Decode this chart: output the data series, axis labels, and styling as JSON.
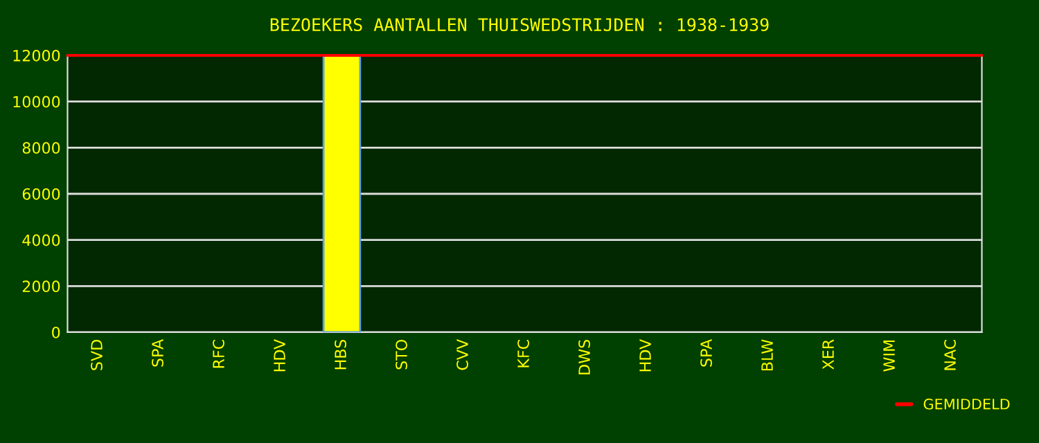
{
  "chart_data": {
    "type": "bar",
    "title": "BEZOEKERS AANTALLEN THUISWEDSTRIJDEN : 1938-1939",
    "categories": [
      "SVD",
      "SPA",
      "RFC",
      "HDV",
      "HBS",
      "STO",
      "CVV",
      "KFC",
      "DWS",
      "HDV",
      "SPA",
      "BLW",
      "XER",
      "WIM",
      "NAC"
    ],
    "values": [
      null,
      null,
      null,
      null,
      12000,
      null,
      null,
      null,
      null,
      null,
      null,
      null,
      null,
      null,
      null
    ],
    "color": "#ffff00",
    "ylim": [
      0,
      12000
    ],
    "yticks": [
      0,
      2000,
      4000,
      6000,
      8000,
      10000,
      12000
    ],
    "grid": "y",
    "ref_lines": [
      {
        "axis": "y",
        "value": 12000,
        "label": "GEMIDDELD",
        "color": "#ff0000"
      }
    ],
    "legend": "bottom right"
  }
}
